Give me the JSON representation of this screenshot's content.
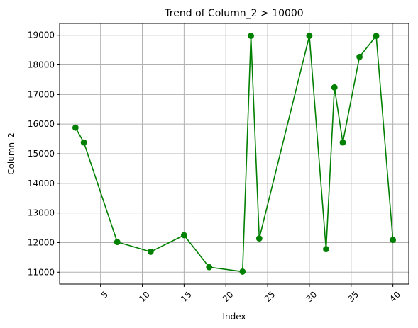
{
  "chart_data": {
    "type": "line",
    "title": "Trend of Column_2 > 10000",
    "xlabel": "Index",
    "ylabel": "Column_2",
    "xlim": [
      0.1,
      41.9
    ],
    "ylim": [
      10600,
      19400
    ],
    "grid": true,
    "x_ticks": [
      5,
      10,
      15,
      20,
      25,
      30,
      35,
      40
    ],
    "y_ticks": [
      11000,
      12000,
      13000,
      14000,
      15000,
      16000,
      17000,
      18000,
      19000
    ],
    "series": [
      {
        "x": [
          2,
          3,
          7,
          11,
          15,
          18,
          22,
          23,
          24,
          30,
          32,
          33,
          34,
          36,
          38,
          40
        ],
        "values": [
          15880,
          15380,
          12020,
          11690,
          12250,
          11170,
          11020,
          18980,
          12140,
          18980,
          11780,
          17240,
          15380,
          18270,
          18980,
          12090
        ],
        "color": "#008000",
        "marker": "circle"
      }
    ]
  }
}
